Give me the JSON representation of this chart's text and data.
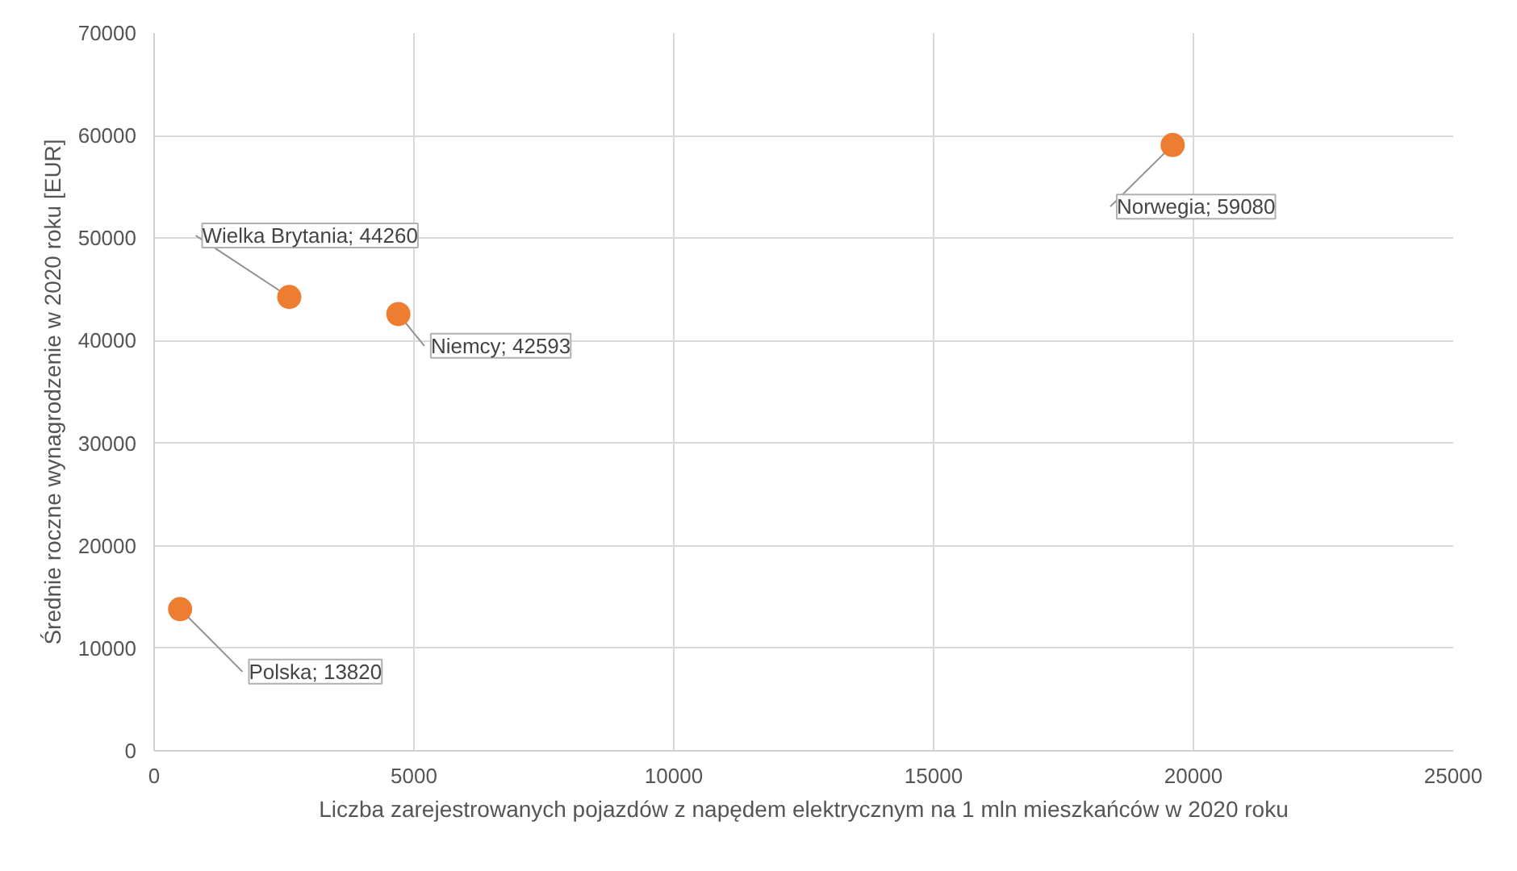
{
  "chart_data": {
    "type": "scatter",
    "xlabel": "Liczba zarejestrowanych pojazdów z napędem elektrycznym na 1 mln mieszkańców w 2020 roku",
    "ylabel": "Średnie roczne wynagrodzenie w 2020 roku [EUR]",
    "x": [
      500,
      2600,
      4700,
      19600
    ],
    "series": [
      {
        "color": "#ed7d31",
        "values": [
          13820,
          44260,
          42593,
          59080
        ],
        "value_labels": [
          "Polska; 13820",
          "Wielka Brytania; 44260",
          "Niemcy; 42593",
          "Norwegia; 59080"
        ]
      }
    ],
    "xlim": [
      0,
      25000
    ],
    "xticks": [
      0,
      5000,
      10000,
      15000,
      20000,
      25000
    ],
    "ylim": [
      0,
      70000
    ],
    "yticks": [
      0,
      10000,
      20000,
      30000,
      40000,
      50000,
      60000,
      70000
    ],
    "grid": true,
    "marker": "circle"
  }
}
